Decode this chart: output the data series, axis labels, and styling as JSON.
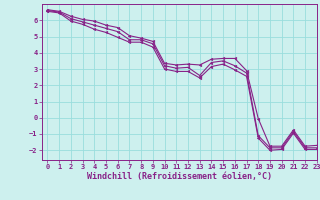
{
  "xlabel": "Windchill (Refroidissement éolien,°C)",
  "background_color": "#cdf0ee",
  "line_color": "#882288",
  "grid_color": "#99dddd",
  "xlim": [
    -0.5,
    23
  ],
  "ylim": [
    -2.6,
    7.0
  ],
  "yticks": [
    -2,
    -1,
    0,
    1,
    2,
    3,
    4,
    5,
    6
  ],
  "xticks": [
    0,
    1,
    2,
    3,
    4,
    5,
    6,
    7,
    8,
    9,
    10,
    11,
    12,
    13,
    14,
    15,
    16,
    17,
    18,
    19,
    20,
    21,
    22,
    23
  ],
  "hours": [
    0,
    1,
    2,
    3,
    4,
    5,
    6,
    7,
    8,
    9,
    10,
    11,
    12,
    13,
    14,
    15,
    16,
    17,
    18,
    19,
    20,
    21,
    22,
    23
  ],
  "mean_line": [
    6.6,
    6.5,
    6.1,
    5.9,
    5.7,
    5.5,
    5.3,
    4.8,
    4.8,
    4.55,
    3.2,
    3.05,
    3.1,
    2.6,
    3.4,
    3.5,
    3.2,
    2.75,
    -1.1,
    -1.85,
    -1.85,
    -0.85,
    -1.85,
    -1.85
  ],
  "max_line": [
    6.65,
    6.55,
    6.25,
    6.05,
    5.95,
    5.7,
    5.55,
    5.05,
    4.9,
    4.7,
    3.35,
    3.25,
    3.3,
    3.25,
    3.6,
    3.65,
    3.65,
    2.9,
    -0.05,
    -1.75,
    -1.75,
    -0.75,
    -1.75,
    -1.7
  ],
  "min_line": [
    6.55,
    6.45,
    5.95,
    5.75,
    5.45,
    5.25,
    4.95,
    4.65,
    4.65,
    4.35,
    3.0,
    2.85,
    2.85,
    2.45,
    3.15,
    3.3,
    2.95,
    2.55,
    -1.25,
    -2.0,
    -1.95,
    -0.95,
    -1.95,
    -1.95
  ],
  "markersize": 2.0,
  "linewidth": 0.8,
  "tick_fontsize": 5.0,
  "label_fontsize": 6.0
}
